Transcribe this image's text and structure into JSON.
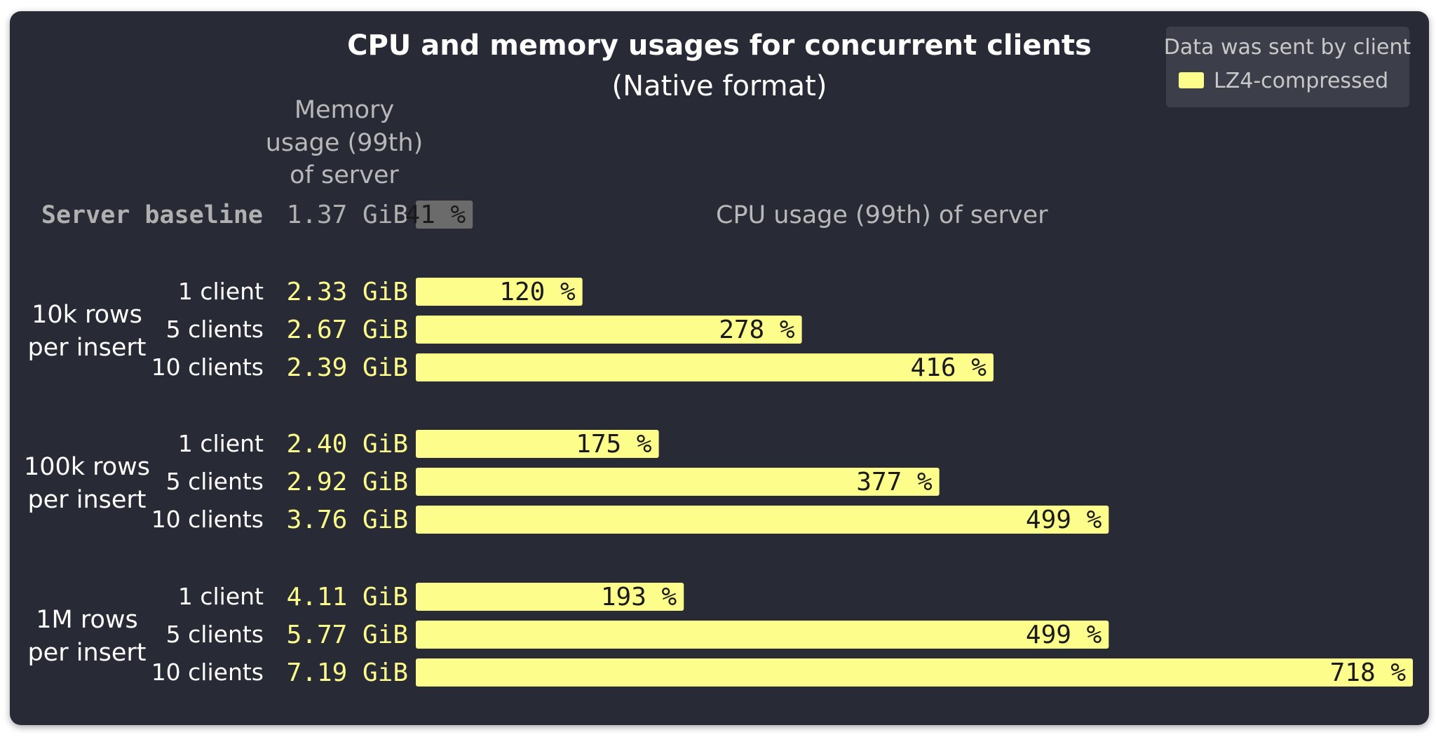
{
  "chart_data": {
    "type": "bar",
    "orientation": "horizontal",
    "title": "CPU and memory usages for concurrent clients",
    "subtitle": "(Native format)",
    "memory_header": [
      "Memory",
      "usage (99th)",
      "of server"
    ],
    "cpu_header": "CPU usage (99th) of server",
    "unit_suffix": " %",
    "baseline": {
      "label": "Server baseline",
      "memory": "1.37 GiB",
      "cpu": 41,
      "color": "#6b6b6b"
    },
    "groups": [
      {
        "label_lines": [
          "10k rows",
          "per insert"
        ],
        "rows": [
          {
            "clients": "1 client",
            "memory": "2.33 GiB",
            "cpu": 120
          },
          {
            "clients": "5 clients",
            "memory": "2.67 GiB",
            "cpu": 278
          },
          {
            "clients": "10 clients",
            "memory": "2.39 GiB",
            "cpu": 416
          }
        ]
      },
      {
        "label_lines": [
          "100k rows",
          "per insert"
        ],
        "rows": [
          {
            "clients": "1 client",
            "memory": "2.40 GiB",
            "cpu": 175
          },
          {
            "clients": "5 clients",
            "memory": "2.92 GiB",
            "cpu": 377
          },
          {
            "clients": "10 clients",
            "memory": "3.76 GiB",
            "cpu": 499
          }
        ]
      },
      {
        "label_lines": [
          "1M rows",
          "per insert"
        ],
        "rows": [
          {
            "clients": "1 client",
            "memory": "4.11 GiB",
            "cpu": 193
          },
          {
            "clients": "5 clients",
            "memory": "5.77 GiB",
            "cpu": 499
          },
          {
            "clients": "10 clients",
            "memory": "7.19 GiB",
            "cpu": 718
          }
        ]
      }
    ],
    "xlim": [
      0,
      718
    ],
    "legend": {
      "title": "Data was sent by client",
      "placement": "top-right",
      "items": [
        {
          "label": "LZ4-compressed",
          "color": "#fdfd8b"
        }
      ]
    },
    "colors": {
      "bar": "#fdfd8b",
      "memory_text": "#fdfd8b",
      "baseline_text": "#b0b0b0",
      "background": "#282a36"
    },
    "grid": false
  }
}
